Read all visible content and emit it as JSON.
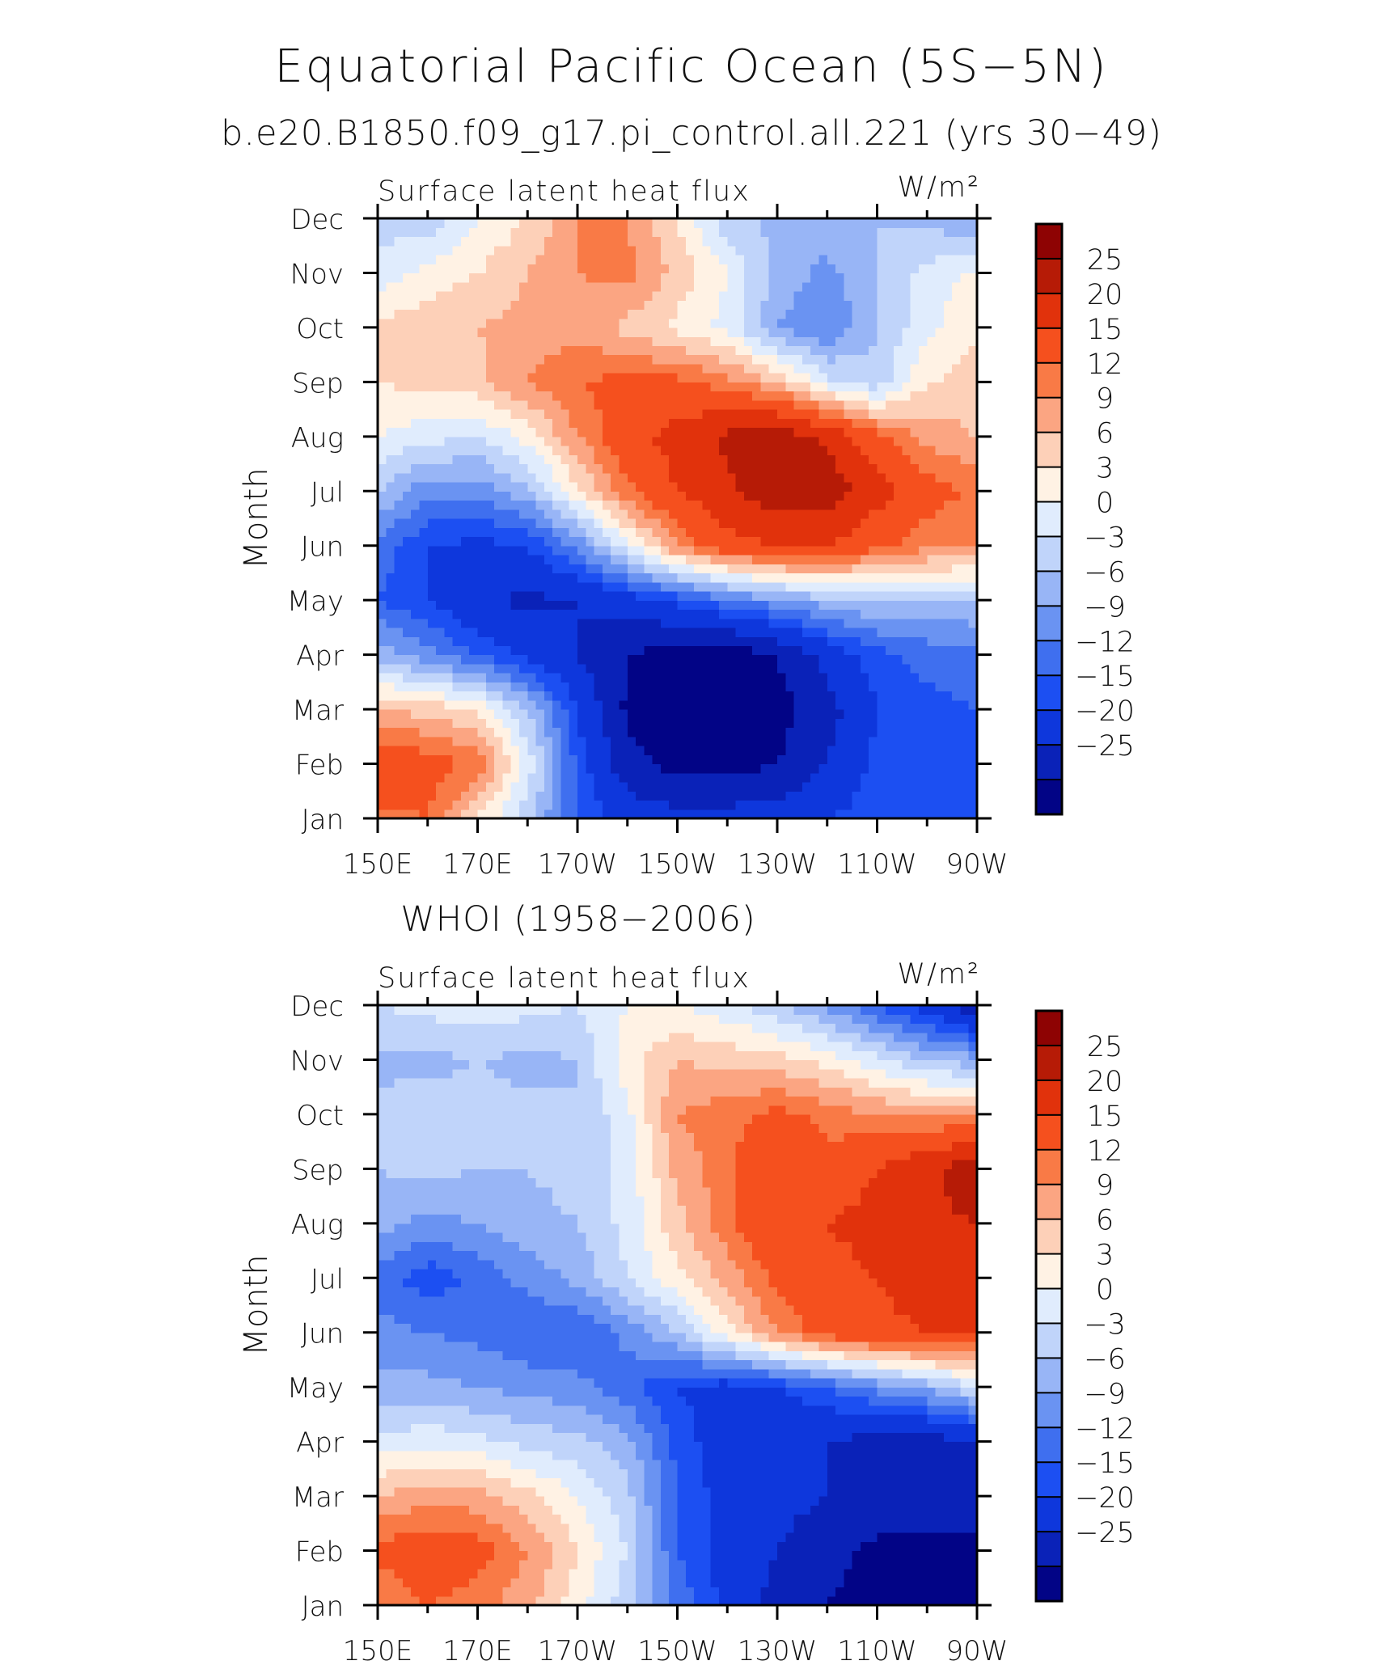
{
  "page": {
    "title": "Equatorial Pacific Ocean (5S−5N)",
    "top_subtitle": "b.e20.B1850.f09_g17.pi_control.all.221 (yrs 30−49)",
    "bottom_subtitle": "WHOI (1958−2006)"
  },
  "colors": {
    "palette": [
      "#020486",
      "#0a22b8",
      "#0e37dc",
      "#1c4ff2",
      "#3f6fef",
      "#6a93f2",
      "#98b5f6",
      "#c0d4fa",
      "#e0ecfd",
      "#fff2e4",
      "#fdd0b8",
      "#fba582",
      "#f97a46",
      "#f5501e",
      "#e1320c",
      "#b61b06",
      "#8e0303"
    ],
    "levels": [
      -25,
      -20,
      -15,
      -12,
      -9,
      -6,
      -3,
      0,
      3,
      6,
      9,
      12,
      15,
      20,
      25
    ]
  },
  "chart_data": [
    {
      "type": "heatmap",
      "panel_label": "Surface latent heat flux",
      "units": "W/m²",
      "ylabel": "Month",
      "x_tick_labels": [
        "150E",
        "170E",
        "170W",
        "150W",
        "130W",
        "110W",
        "90W"
      ],
      "y_tick_labels": [
        "Jan",
        "Feb",
        "Mar",
        "Apr",
        "May",
        "Jun",
        "Jul",
        "Aug",
        "Sep",
        "Oct",
        "Nov",
        "Dec"
      ],
      "colorbar_labels": [
        "25",
        "20",
        "15",
        "12",
        "9",
        "6",
        "3",
        "0",
        "−3",
        "−6",
        "−9",
        "−12",
        "−15",
        "−20",
        "−25"
      ],
      "lon": [
        150,
        160,
        170,
        180,
        190,
        200,
        210,
        220,
        230,
        240,
        250,
        260,
        270
      ],
      "values": [
        [
          14,
          15,
          6,
          -2,
          -12,
          -17,
          -18,
          -18,
          -17,
          -15,
          -13,
          -12,
          -12
        ],
        [
          18,
          17,
          14,
          2,
          -13,
          -23,
          -27,
          -27,
          -25,
          -20,
          -14,
          -13,
          -12
        ],
        [
          9,
          8,
          6,
          -3,
          -15,
          -26,
          -30,
          -30,
          -27,
          -22,
          -15,
          -13,
          -12
        ],
        [
          -4,
          -8,
          -12,
          -16,
          -20,
          -25,
          -28,
          -28,
          -25,
          -18,
          -13,
          -11,
          -10
        ],
        [
          -12,
          -15,
          -19,
          -21,
          -20,
          -17,
          -14,
          -10,
          -7,
          -4,
          -3,
          -3,
          -3
        ],
        [
          -10,
          -15,
          -16,
          -15,
          -8,
          2,
          12,
          18,
          20,
          20,
          16,
          13,
          12
        ],
        [
          -3,
          -8,
          -8,
          -4,
          5,
          14,
          20,
          24,
          28,
          28,
          22,
          17,
          14
        ],
        [
          3,
          1,
          0,
          4,
          12,
          18,
          22,
          26,
          28,
          24,
          16,
          11,
          9
        ],
        [
          6,
          7,
          8,
          12,
          15,
          16,
          16,
          13,
          9,
          1,
          -2,
          6,
          7
        ],
        [
          7,
          8,
          9,
          10,
          11,
          8,
          5,
          2,
          -6,
          -9,
          -3,
          2,
          6
        ],
        [
          1,
          4,
          6,
          9,
          12,
          13,
          8,
          3,
          -4,
          -7,
          -3,
          1,
          4
        ],
        [
          -1,
          -2,
          3,
          6,
          12,
          12,
          6,
          -2,
          -4,
          -4,
          -3,
          -4,
          -6
        ]
      ]
    },
    {
      "type": "heatmap",
      "panel_label": "Surface latent heat flux",
      "units": "W/m²",
      "ylabel": "Month",
      "x_tick_labels": [
        "150E",
        "170E",
        "170W",
        "150W",
        "130W",
        "110W",
        "90W"
      ],
      "y_tick_labels": [
        "Jan",
        "Feb",
        "Mar",
        "Apr",
        "May",
        "Jun",
        "Jul",
        "Aug",
        "Sep",
        "Oct",
        "Nov",
        "Dec"
      ],
      "colorbar_labels": [
        "25",
        "20",
        "15",
        "12",
        "9",
        "6",
        "3",
        "0",
        "−3",
        "−6",
        "−9",
        "−12",
        "−15",
        "−20",
        "−25"
      ],
      "lon": [
        150,
        160,
        170,
        180,
        190,
        200,
        210,
        220,
        230,
        240,
        250,
        260,
        270
      ],
      "values": [
        [
          12,
          15,
          13,
          10,
          4,
          -2,
          -10,
          -16,
          -22,
          -25,
          -26,
          -27,
          -27
        ],
        [
          16,
          18,
          17,
          12,
          6,
          0,
          -12,
          -17,
          -20,
          -24,
          -26,
          -27,
          -26
        ],
        [
          9,
          11,
          10,
          7,
          3,
          -2,
          -12,
          -17,
          -18,
          -20,
          -22,
          -22,
          -22
        ],
        [
          1,
          2,
          1,
          -1,
          -2,
          -5,
          -13,
          -18,
          -20,
          -20,
          -22,
          -22,
          -20
        ],
        [
          -5,
          -5,
          -6,
          -7,
          -8,
          -11,
          -15,
          -17,
          -15,
          -12,
          -8,
          -5,
          0
        ],
        [
          -8,
          -9,
          -10,
          -12,
          -12,
          -8,
          -3,
          5,
          12,
          17,
          19,
          20,
          20
        ],
        [
          -10,
          -14,
          -11,
          -8,
          -5,
          0,
          5,
          10,
          16,
          18,
          20,
          22,
          22
        ],
        [
          -5,
          -7,
          -6,
          -4,
          -3,
          1,
          8,
          14,
          20,
          20,
          22,
          24,
          25
        ],
        [
          -3,
          -2,
          -3,
          -3,
          -2,
          1,
          10,
          14,
          20,
          16,
          20,
          24,
          28
        ],
        [
          -2,
          -1,
          -2,
          -2,
          -3,
          2,
          12,
          14,
          16,
          14,
          12,
          11,
          13
        ],
        [
          -4,
          -4,
          -3,
          -4,
          -3,
          5,
          9,
          8,
          7,
          5,
          1,
          -3,
          -5
        ],
        [
          0,
          1,
          2,
          1,
          0,
          3,
          3,
          1,
          -2,
          -7,
          -12,
          -17,
          -23
        ]
      ]
    }
  ]
}
